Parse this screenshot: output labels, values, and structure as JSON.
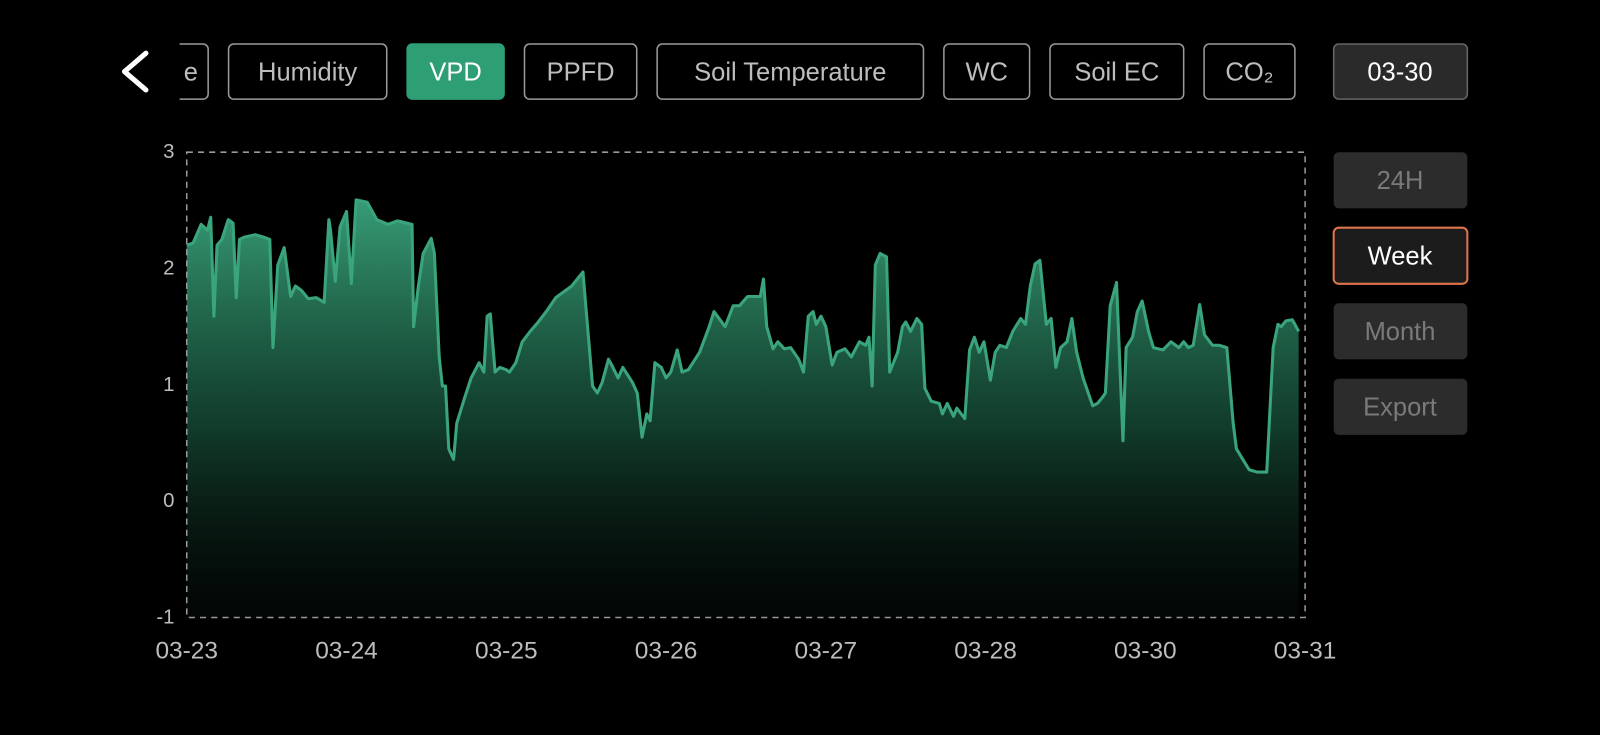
{
  "back": true,
  "tabs": [
    "e",
    "Humidity",
    "VPD",
    "PPFD",
    "Soil Temperature",
    "WC",
    "Soil EC",
    "CO₂"
  ],
  "active_tab": 2,
  "date_button": "03-30",
  "range_buttons": [
    "24H",
    "Week",
    "Month",
    "Export"
  ],
  "active_range": 1,
  "chart_data": {
    "type": "area",
    "color": "#3aa57c",
    "xlim": [
      0,
      7
    ],
    "xticks": [
      {
        "value": 0,
        "label": "03-23"
      },
      {
        "value": 1,
        "label": "03-24"
      },
      {
        "value": 2,
        "label": "03-25"
      },
      {
        "value": 3,
        "label": "03-26"
      },
      {
        "value": 4,
        "label": "03-27"
      },
      {
        "value": 5,
        "label": "03-28"
      },
      {
        "value": 6,
        "label": "03-30"
      },
      {
        "value": 7,
        "label": "03-31"
      }
    ],
    "ylim": [
      -1,
      3
    ],
    "yticks": [
      -1,
      0,
      1,
      2,
      3
    ],
    "x": [
      0,
      0.04,
      0.09,
      0.13,
      0.15,
      0.17,
      0.19,
      0.22,
      0.26,
      0.29,
      0.31,
      0.33,
      0.36,
      0.43,
      0.48,
      0.52,
      0.54,
      0.57,
      0.61,
      0.65,
      0.68,
      0.72,
      0.76,
      0.81,
      0.86,
      0.89,
      0.9,
      0.93,
      0.96,
      1.0,
      1.03,
      1.06,
      1.13,
      1.19,
      1.26,
      1.32,
      1.41,
      1.42,
      1.45,
      1.48,
      1.53,
      1.55,
      1.58,
      1.6,
      1.62,
      1.64,
      1.67,
      1.69,
      1.74,
      1.78,
      1.83,
      1.86,
      1.88,
      1.9,
      1.93,
      1.96,
      2.0,
      2.02,
      2.06,
      2.1,
      2.15,
      2.2,
      2.25,
      2.31,
      2.41,
      2.48,
      2.54,
      2.57,
      2.6,
      2.64,
      2.66,
      2.7,
      2.73,
      2.79,
      2.82,
      2.85,
      2.88,
      2.9,
      2.93,
      2.97,
      3.0,
      3.03,
      3.07,
      3.1,
      3.14,
      3.21,
      3.27,
      3.3,
      3.37,
      3.42,
      3.46,
      3.51,
      3.59,
      3.61,
      3.63,
      3.67,
      3.7,
      3.74,
      3.78,
      3.83,
      3.86,
      3.89,
      3.92,
      3.94,
      3.97,
      4.0,
      4.04,
      4.07,
      4.12,
      4.16,
      4.21,
      4.25,
      4.27,
      4.29,
      4.31,
      4.34,
      4.38,
      4.4,
      4.45,
      4.48,
      4.5,
      4.53,
      4.57,
      4.6,
      4.62,
      4.66,
      4.71,
      4.73,
      4.76,
      4.8,
      4.82,
      4.87,
      4.9,
      4.93,
      4.96,
      4.99,
      5.03,
      5.06,
      5.09,
      5.13,
      5.17,
      5.22,
      5.25,
      5.28,
      5.31,
      5.34,
      5.38,
      5.41,
      5.44,
      5.47,
      5.51,
      5.54,
      5.57,
      5.61,
      5.67,
      5.7,
      5.73,
      5.75,
      5.78,
      5.82,
      5.86,
      5.88,
      5.92,
      5.95,
      5.98,
      6.02,
      6.05,
      6.11,
      6.16,
      6.21,
      6.24,
      6.27,
      6.3,
      6.34,
      6.37,
      6.42,
      6.46,
      6.51,
      6.55,
      6.57,
      6.61,
      6.65,
      6.7,
      6.76,
      6.8,
      6.83,
      6.85,
      6.88,
      6.92,
      6.96
    ],
    "values": [
      2.2,
      2.22,
      2.38,
      2.33,
      2.44,
      1.59,
      2.2,
      2.25,
      2.42,
      2.39,
      1.75,
      2.25,
      2.27,
      2.29,
      2.27,
      2.25,
      1.32,
      2.03,
      2.18,
      1.76,
      1.85,
      1.81,
      1.74,
      1.75,
      1.71,
      2.42,
      2.33,
      1.89,
      2.36,
      2.49,
      1.87,
      2.59,
      2.57,
      2.42,
      2.38,
      2.41,
      2.38,
      1.5,
      1.85,
      2.13,
      2.26,
      2.13,
      1.24,
      0.99,
      0.99,
      0.45,
      0.36,
      0.67,
      0.89,
      1.06,
      1.19,
      1.11,
      1.59,
      1.61,
      1.11,
      1.15,
      1.13,
      1.11,
      1.19,
      1.37,
      1.46,
      1.54,
      1.63,
      1.75,
      1.85,
      1.97,
      0.99,
      0.93,
      1.02,
      1.22,
      1.17,
      1.06,
      1.15,
      1.02,
      0.93,
      0.55,
      0.75,
      0.69,
      1.19,
      1.15,
      1.06,
      1.11,
      1.3,
      1.11,
      1.13,
      1.28,
      1.5,
      1.63,
      1.5,
      1.68,
      1.68,
      1.76,
      1.76,
      1.91,
      1.5,
      1.31,
      1.37,
      1.31,
      1.32,
      1.22,
      1.11,
      1.59,
      1.63,
      1.52,
      1.59,
      1.5,
      1.17,
      1.28,
      1.31,
      1.24,
      1.37,
      1.34,
      1.41,
      0.99,
      2.03,
      2.13,
      2.1,
      1.11,
      1.28,
      1.5,
      1.54,
      1.46,
      1.57,
      1.52,
      0.97,
      0.86,
      0.84,
      0.75,
      0.84,
      0.73,
      0.8,
      0.71,
      1.3,
      1.41,
      1.28,
      1.37,
      1.04,
      1.28,
      1.34,
      1.32,
      1.46,
      1.57,
      1.52,
      1.85,
      2.04,
      2.07,
      1.52,
      1.57,
      1.15,
      1.32,
      1.37,
      1.57,
      1.28,
      1.06,
      0.82,
      0.84,
      0.89,
      0.93,
      1.68,
      1.88,
      0.52,
      1.32,
      1.41,
      1.63,
      1.72,
      1.46,
      1.32,
      1.3,
      1.37,
      1.32,
      1.37,
      1.32,
      1.34,
      1.69,
      1.43,
      1.34,
      1.34,
      1.32,
      0.67,
      0.45,
      0.36,
      0.27,
      0.25,
      0.25,
      1.32,
      1.52,
      1.5,
      1.55,
      1.56,
      1.46
    ]
  }
}
